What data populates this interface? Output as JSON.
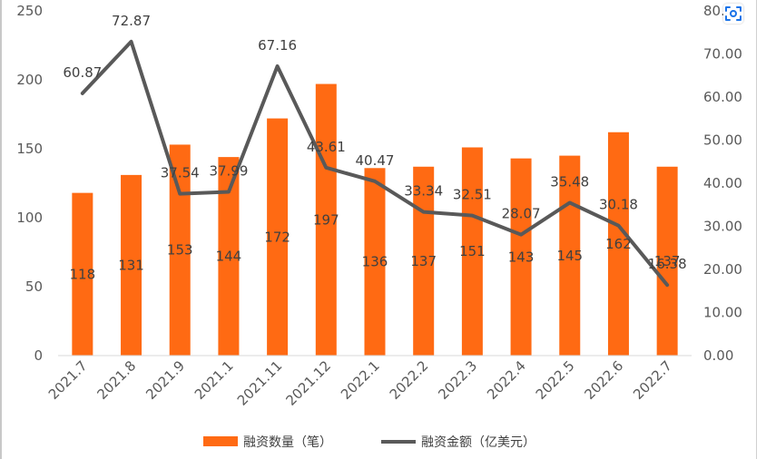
{
  "chart_data": {
    "type": "bar",
    "categories": [
      "2021.7",
      "2021.8",
      "2021.9",
      "2021.1",
      "2021.11",
      "2021.12",
      "2022.1",
      "2022.2",
      "2022.3",
      "2022.4",
      "2022.5",
      "2022.6",
      "2022.7"
    ],
    "series": [
      {
        "name": "融资数量（笔）",
        "type": "bar",
        "axis": "left",
        "color": "#FF6A13",
        "values": [
          118,
          131,
          153,
          144,
          172,
          197,
          136,
          137,
          151,
          143,
          145,
          162,
          137
        ],
        "labels": [
          "118",
          "131",
          "153",
          "144",
          "172",
          "197",
          "136",
          "137",
          "151",
          "143",
          "145",
          "162",
          "137"
        ]
      },
      {
        "name": "融资金额（亿美元）",
        "type": "line",
        "axis": "right",
        "color": "#595959",
        "values": [
          60.87,
          72.87,
          37.54,
          37.99,
          67.16,
          43.61,
          40.47,
          33.34,
          32.51,
          28.07,
          35.48,
          30.18,
          16.38
        ],
        "labels": [
          "60.87",
          "72.87",
          "37.54",
          "37.99",
          "67.16",
          "43.61",
          "40.47",
          "33.34",
          "32.51",
          "28.07",
          "35.48",
          "30.18",
          "16.38"
        ]
      }
    ],
    "y_left": {
      "range": [
        0,
        250
      ],
      "ticks": [
        "0",
        "50",
        "100",
        "150",
        "200",
        "250"
      ]
    },
    "y_right": {
      "range": [
        0,
        80
      ],
      "ticks": [
        "0.00",
        "10.00",
        "20.00",
        "30.00",
        "40.00",
        "50.00",
        "60.00",
        "70.00",
        "80.00"
      ]
    },
    "grid": false,
    "legend_position": "bottom",
    "title": "",
    "xlabel": "",
    "ylabel": ""
  },
  "icons": {
    "scan": "scan-icon"
  }
}
